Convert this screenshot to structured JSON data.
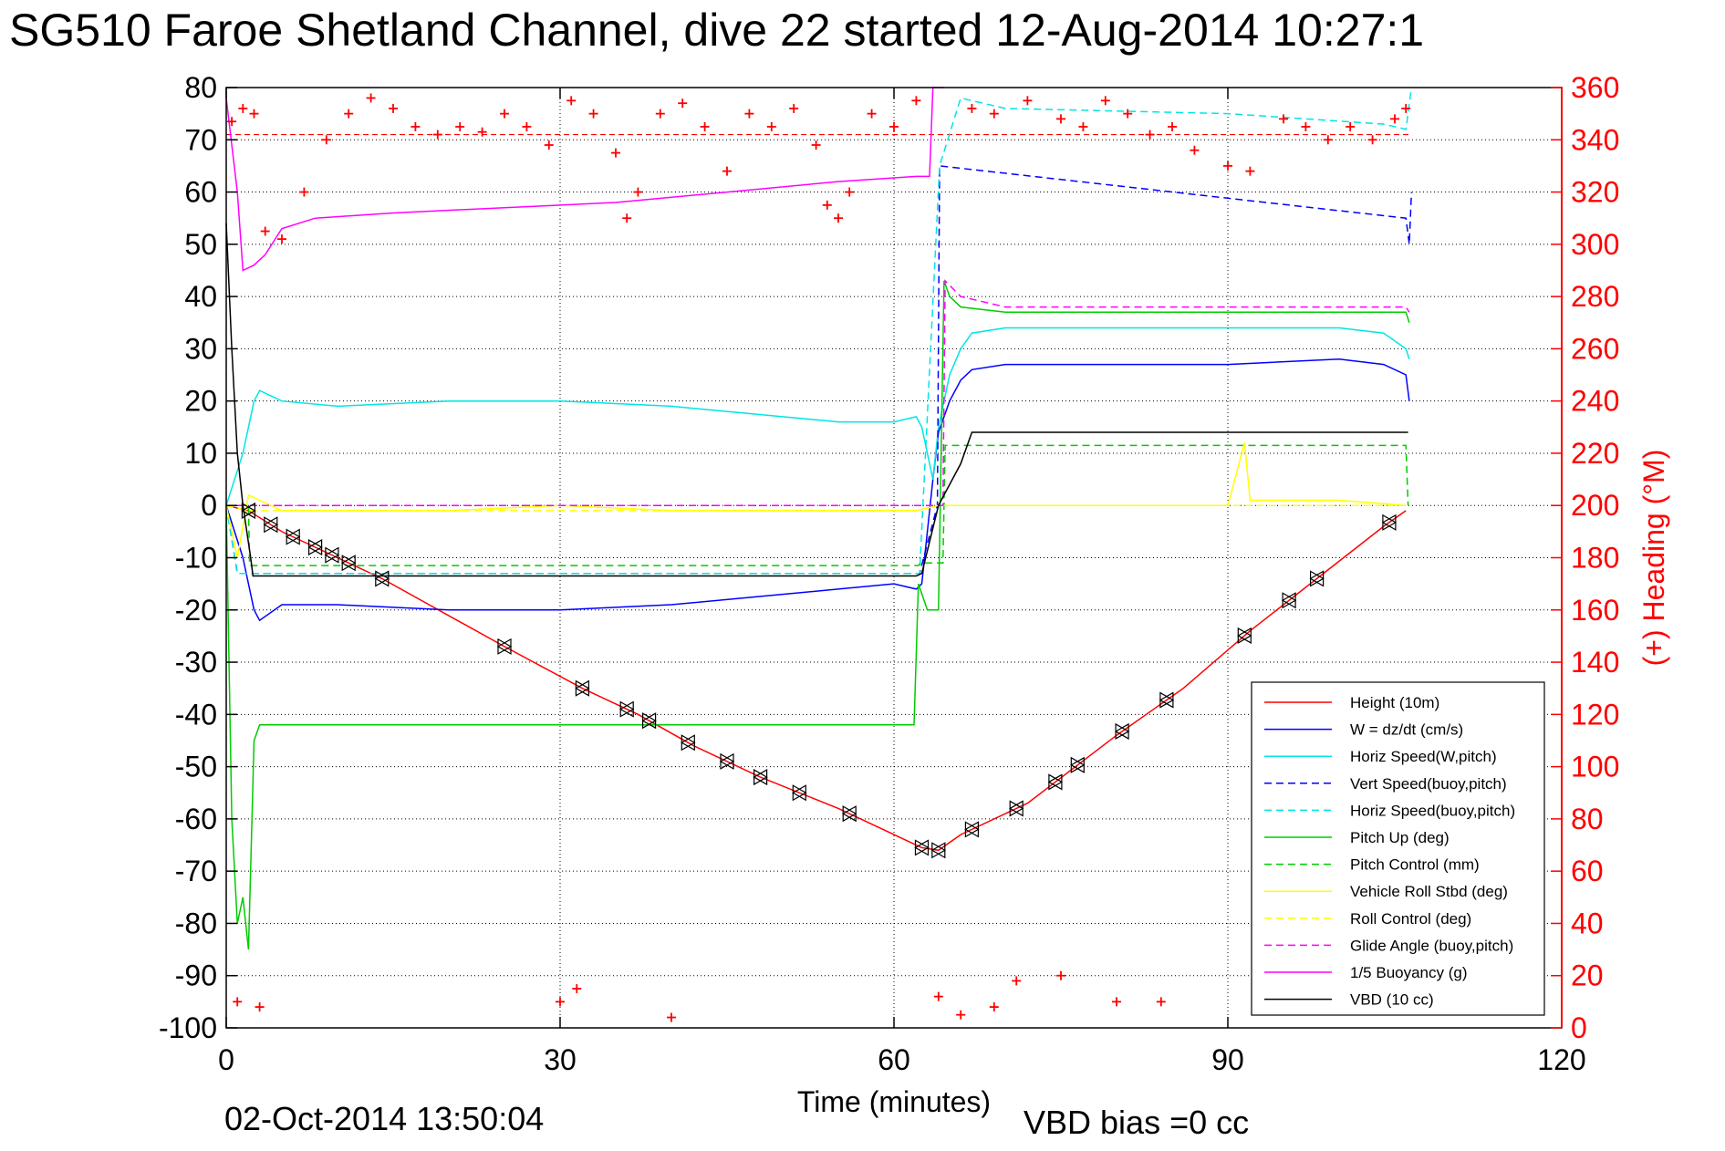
{
  "chart_data": {
    "type": "line",
    "title": "SG510 Faroe Shetland Channel, dive 22 started 12-Aug-2014 10:27:1",
    "xlabel": "Time (minutes)",
    "ylabel_right": "(+) Heading (°M)",
    "xlim": [
      0,
      120
    ],
    "ylim": [
      -100,
      80
    ],
    "ylim_right": [
      0,
      360
    ],
    "x_ticks": [
      "0",
      "30",
      "60",
      "90",
      "120"
    ],
    "y_ticks": [
      "80",
      "70",
      "60",
      "50",
      "40",
      "30",
      "20",
      "10",
      "0",
      "-10",
      "-20",
      "-30",
      "-40",
      "-50",
      "-60",
      "-70",
      "-80",
      "-90",
      "-100"
    ],
    "y_ticks_right": [
      "360",
      "340",
      "320",
      "300",
      "280",
      "260",
      "240",
      "220",
      "200",
      "180",
      "160",
      "140",
      "120",
      "100",
      "80",
      "60",
      "40",
      "20",
      "0"
    ],
    "grid": true,
    "legend_position": "bottom-right",
    "series": [
      {
        "name": "Height (10m)",
        "color": "#ff0000",
        "style": "solid",
        "x": [
          0,
          2,
          5,
          10,
          14,
          25,
          32,
          37,
          42,
          48,
          55,
          61,
          62.5,
          64,
          66,
          72,
          80,
          86,
          92,
          98,
          104,
          106
        ],
        "y": [
          0,
          -1,
          -5,
          -10,
          -14,
          -27,
          -35,
          -40,
          -46,
          -52,
          -58,
          -64,
          -65.5,
          -66,
          -63,
          -57,
          -44,
          -35,
          -24,
          -14,
          -4,
          -1
        ]
      },
      {
        "name": "W = dz/dt (cm/s)",
        "color": "#0000ff",
        "style": "solid",
        "x": [
          0,
          1.5,
          2.5,
          3,
          5,
          10,
          20,
          30,
          40,
          50,
          55,
          60,
          62,
          62.5,
          63.5,
          64,
          65,
          66,
          67,
          70,
          80,
          90,
          100,
          104,
          106,
          106.3
        ],
        "y": [
          0,
          -10,
          -20,
          -22,
          -19,
          -19,
          -20,
          -20,
          -19,
          -17,
          -16,
          -15,
          -16,
          -15,
          5,
          14,
          20,
          24,
          26,
          27,
          27,
          27,
          28,
          27,
          25,
          20
        ]
      },
      {
        "name": "Horiz Speed(W,pitch)",
        "color": "#00e5e5",
        "style": "solid",
        "x": [
          0,
          1.5,
          2.5,
          3,
          5,
          10,
          20,
          30,
          40,
          50,
          55,
          60,
          62,
          62.5,
          63.5,
          64,
          65,
          66,
          67,
          70,
          80,
          90,
          100,
          104,
          106,
          106.3
        ],
        "y": [
          0,
          10,
          20,
          22,
          20,
          19,
          20,
          20,
          19,
          17,
          16,
          16,
          17,
          15,
          5,
          15,
          25,
          30,
          33,
          34,
          34,
          34,
          34,
          33,
          30,
          28
        ]
      },
      {
        "name": "Vert Speed(buoy,pitch)",
        "color": "#0000ff",
        "style": "dashed",
        "x": [
          0,
          1,
          62.3,
          63.9,
          64.1,
          106,
          106.3,
          106.5
        ],
        "y": [
          0,
          -13,
          -13,
          0,
          65,
          55,
          50,
          60
        ]
      },
      {
        "name": "Horiz Speed(buoy,pitch)",
        "color": "#00e5e5",
        "style": "dashed",
        "x": [
          0,
          1,
          62.3,
          64.1,
          66,
          70,
          90,
          104,
          106,
          106.5
        ],
        "y": [
          0,
          -13,
          -13,
          65,
          78,
          76,
          75,
          73,
          72,
          80
        ]
      },
      {
        "name": "Pitch Up (deg)",
        "color": "#00cc00",
        "style": "solid",
        "x": [
          0,
          0.5,
          1,
          1.5,
          2,
          2.5,
          3,
          10,
          20,
          30,
          40,
          50,
          60,
          61.8,
          62.2,
          63,
          64,
          64.5,
          65,
          66,
          70,
          80,
          90,
          100,
          106,
          106.3
        ],
        "y": [
          0,
          -60,
          -80,
          -75,
          -85,
          -45,
          -42,
          -42,
          -42,
          -42,
          -42,
          -42,
          -42,
          -42,
          -15,
          -20,
          -20,
          43,
          40,
          38,
          37,
          37,
          37,
          37,
          37,
          35
        ]
      },
      {
        "name": "Pitch Control (mm)",
        "color": "#00cc00",
        "style": "dashed",
        "x": [
          0,
          2,
          2.1,
          62.2,
          62.4,
          64.4,
          64.6,
          67,
          106,
          106.2
        ],
        "y": [
          0,
          0,
          -11.5,
          -11.5,
          -11,
          -11,
          11.5,
          11.5,
          11.5,
          0
        ]
      },
      {
        "name": "Vehicle Roll Stbd (deg)",
        "color": "#ffff00",
        "style": "solid",
        "x": [
          0,
          1,
          2,
          5,
          10,
          20,
          30,
          40,
          50,
          60,
          62,
          64,
          70,
          80,
          90,
          91.5,
          92,
          100,
          106
        ],
        "y": [
          0,
          -10,
          2,
          -1,
          -1,
          -1,
          0,
          -1,
          -1,
          -1,
          -1,
          0,
          0,
          0,
          0,
          12,
          1,
          1,
          0
        ]
      },
      {
        "name": "Roll Control (deg)",
        "color": "#ffff00",
        "style": "dashed",
        "x": [
          0,
          2,
          3,
          62,
          64,
          106
        ],
        "y": [
          0,
          -1,
          -1,
          -1,
          0,
          0
        ]
      },
      {
        "name": "Glide Angle (buoy,pitch)",
        "color": "#ff00ff",
        "style": "dashed",
        "x": [
          0,
          64.4,
          64.6,
          66,
          70,
          80,
          90,
          100,
          106,
          106.3
        ],
        "y": [
          0,
          0,
          43,
          40,
          38,
          38,
          38,
          38,
          38,
          37
        ]
      },
      {
        "name": "1/5 Buoyancy (g)",
        "color": "#ff00ff",
        "style": "solid",
        "x": [
          0,
          1,
          1.5,
          2.5,
          3.5,
          5,
          8,
          15,
          25,
          35,
          45,
          55,
          62,
          63.2,
          63.5,
          64,
          64.5
        ],
        "y": [
          78,
          60,
          45,
          46,
          48,
          53,
          55,
          56,
          57,
          58,
          60,
          62,
          63,
          63,
          80,
          80,
          80
        ]
      },
      {
        "name": "VBD (10 cc)",
        "color": "#000000",
        "style": "solid",
        "x": [
          0,
          0.5,
          1,
          1.5,
          2.2,
          2.4,
          62,
          62.5,
          64,
          66,
          67,
          106,
          106.2
        ],
        "y": [
          54,
          30,
          10,
          0,
          -10,
          -13.5,
          -13.5,
          -13,
          0,
          8,
          14,
          14,
          14
        ]
      }
    ],
    "heading_deg_markers": [
      {
        "x": 0.5,
        "y": 347
      },
      {
        "x": 1.5,
        "y": 352
      },
      {
        "x": 2.5,
        "y": 350
      },
      {
        "x": 3.5,
        "y": 305
      },
      {
        "x": 5,
        "y": 302
      },
      {
        "x": 7,
        "y": 320
      },
      {
        "x": 9,
        "y": 340
      },
      {
        "x": 11,
        "y": 350
      },
      {
        "x": 13,
        "y": 356
      },
      {
        "x": 15,
        "y": 352
      },
      {
        "x": 17,
        "y": 345
      },
      {
        "x": 19,
        "y": 342
      },
      {
        "x": 21,
        "y": 345
      },
      {
        "x": 23,
        "y": 343
      },
      {
        "x": 25,
        "y": 350
      },
      {
        "x": 27,
        "y": 345
      },
      {
        "x": 29,
        "y": 338
      },
      {
        "x": 31,
        "y": 355
      },
      {
        "x": 33,
        "y": 350
      },
      {
        "x": 35,
        "y": 335
      },
      {
        "x": 36,
        "y": 310
      },
      {
        "x": 37,
        "y": 320
      },
      {
        "x": 39,
        "y": 350
      },
      {
        "x": 41,
        "y": 354
      },
      {
        "x": 43,
        "y": 345
      },
      {
        "x": 45,
        "y": 328
      },
      {
        "x": 47,
        "y": 350
      },
      {
        "x": 49,
        "y": 345
      },
      {
        "x": 51,
        "y": 352
      },
      {
        "x": 53,
        "y": 338
      },
      {
        "x": 54,
        "y": 315
      },
      {
        "x": 55,
        "y": 310
      },
      {
        "x": 56,
        "y": 320
      },
      {
        "x": 58,
        "y": 350
      },
      {
        "x": 60,
        "y": 345
      },
      {
        "x": 62,
        "y": 355
      },
      {
        "x": 67,
        "y": 352
      },
      {
        "x": 69,
        "y": 350
      },
      {
        "x": 72,
        "y": 355
      },
      {
        "x": 75,
        "y": 348
      },
      {
        "x": 77,
        "y": 345
      },
      {
        "x": 79,
        "y": 355
      },
      {
        "x": 81,
        "y": 350
      },
      {
        "x": 83,
        "y": 342
      },
      {
        "x": 85,
        "y": 345
      },
      {
        "x": 87,
        "y": 336
      },
      {
        "x": 90,
        "y": 330
      },
      {
        "x": 92,
        "y": 328
      },
      {
        "x": 95,
        "y": 348
      },
      {
        "x": 97,
        "y": 345
      },
      {
        "x": 99,
        "y": 340
      },
      {
        "x": 101,
        "y": 345
      },
      {
        "x": 103,
        "y": 340
      },
      {
        "x": 105,
        "y": 348
      },
      {
        "x": 106,
        "y": 352
      },
      {
        "x": 1,
        "y": 10
      },
      {
        "x": 3,
        "y": 8
      },
      {
        "x": 30,
        "y": 10
      },
      {
        "x": 31.5,
        "y": 15
      },
      {
        "x": 40,
        "y": 4
      },
      {
        "x": 64,
        "y": 12
      },
      {
        "x": 66,
        "y": 5
      },
      {
        "x": 69,
        "y": 8
      },
      {
        "x": 71,
        "y": 18
      },
      {
        "x": 75,
        "y": 20
      },
      {
        "x": 80,
        "y": 10
      },
      {
        "x": 84,
        "y": 10
      }
    ],
    "heading_reference_deg": 342,
    "depth_markers_x": [
      2,
      4,
      6,
      8,
      9.5,
      11,
      14,
      25,
      32,
      36,
      38,
      41.5,
      45,
      48,
      51.5,
      56,
      62.5,
      64,
      67,
      71,
      74.5,
      76.5,
      80.5,
      84.5,
      91.5,
      95.5,
      98,
      104.5
    ]
  }
}
